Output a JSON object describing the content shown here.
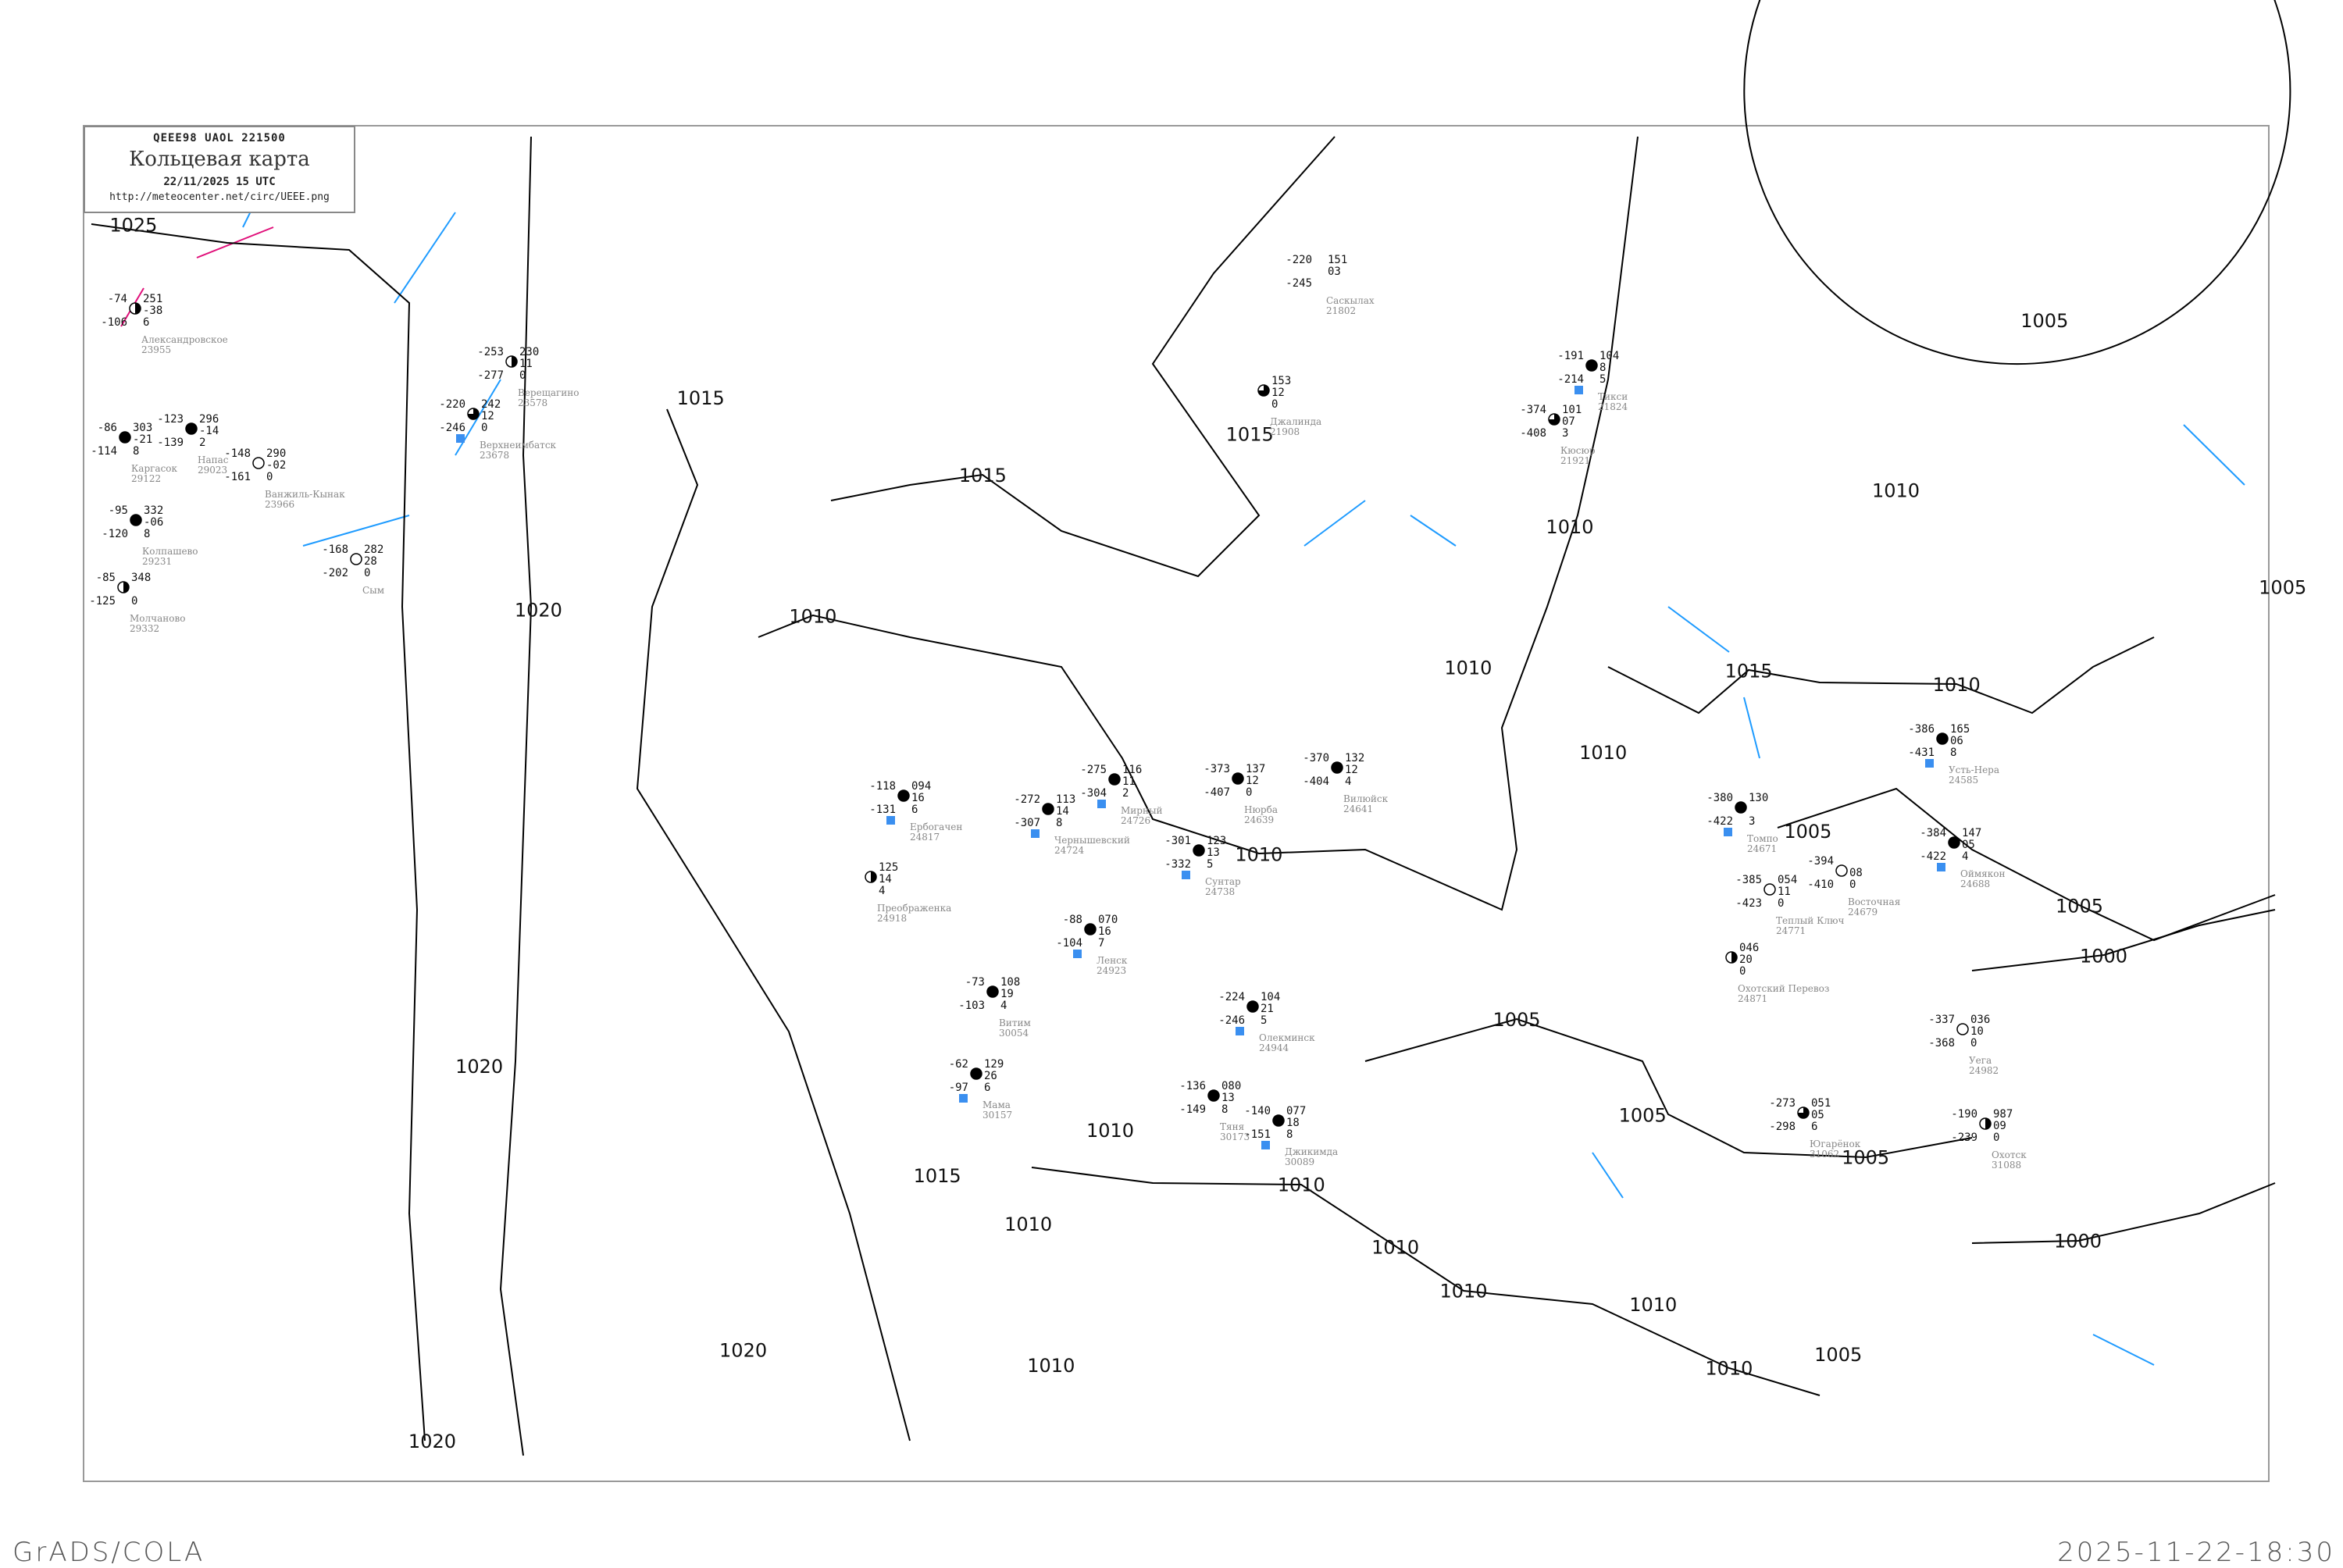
{
  "header": {
    "code": "QEEE98  UAOL  221500",
    "title": "Кольцевая карта",
    "date": "22/11/2025 15 UTC",
    "url": "http://meteocenter.net/circ/UEEE.png"
  },
  "footer": {
    "left": "GrADS/COLA",
    "right": "2025-11-22-18:30"
  },
  "colors": {
    "isobar": "#000000",
    "isotherm": "#1e9bff",
    "isotherm_warm": "#e0107a",
    "coast": "#aaaaaa",
    "precip_marker": "#3a8ff0",
    "station_name": "#888888"
  },
  "isobar_labels": [
    "1025",
    "1020",
    "1020",
    "1020",
    "1020",
    "1015",
    "1015",
    "1015",
    "1015",
    "1015",
    "1010",
    "1010",
    "1010",
    "1010",
    "1010",
    "1010",
    "1010",
    "1010",
    "1010",
    "1010",
    "1010",
    "1010",
    "1010",
    "1010",
    "1010",
    "1005",
    "1005",
    "1005",
    "1005",
    "1005",
    "1005",
    "1005",
    "1005",
    "1000",
    "1000"
  ],
  "stations": [
    {
      "name": "Александровское",
      "id": "23955",
      "t": "-74",
      "td": "-106",
      "p": "251",
      "dp": "-38",
      "trend": "6",
      "cover": "half"
    },
    {
      "name": "Каргасок",
      "id": "29122",
      "t": "-86",
      "td": "-114",
      "p": "303",
      "dp": "-21",
      "trend": "8",
      "cover": "full"
    },
    {
      "name": "Напас",
      "id": "29023",
      "t": "-123",
      "td": "-139",
      "p": "296",
      "dp": "-14",
      "trend": "2",
      "cover": "full"
    },
    {
      "name": "Ванжиль-Кынак",
      "id": "23966",
      "t": "-148",
      "td": "-161",
      "p": "290",
      "dp": "-02",
      "trend": "0",
      "cover": "empty"
    },
    {
      "name": "Колпашево",
      "id": "29231",
      "t": "-95",
      "td": "-120",
      "p": "332",
      "dp": "-06",
      "trend": "8",
      "cover": "full"
    },
    {
      "name": "Молчаново",
      "id": "29332",
      "t": "-85",
      "td": "-125",
      "p": "348",
      "dp": "",
      "trend": "0",
      "cover": "half"
    },
    {
      "name": "Верещагино",
      "id": "23578",
      "t": "-253",
      "td": "-277",
      "p": "230",
      "dp": "11",
      "trend": "0",
      "cover": "half"
    },
    {
      "name": "Верхнеимбатск",
      "id": "23678",
      "t": "-220",
      "td": "-246",
      "p": "242",
      "dp": "12",
      "trend": "0",
      "cover": "threequarter",
      "precip": true
    },
    {
      "name": "Сым",
      "id": "",
      "t": "-168",
      "td": "-202",
      "p": "282",
      "dp": "28",
      "trend": "0",
      "cover": "empty"
    },
    {
      "name": "Саскылах",
      "id": "21802",
      "t": "-220",
      "td": "-245",
      "p": "151",
      "dp": "03",
      "trend": "",
      "cover": "none"
    },
    {
      "name": "Тикси",
      "id": "21824",
      "t": "-191",
      "td": "-214",
      "p": "104",
      "dp": "8",
      "trend": "5",
      "cover": "full",
      "precip": true
    },
    {
      "name": "Кюсюр",
      "id": "21921",
      "t": "-374",
      "td": "-408",
      "p": "101",
      "dp": "07",
      "trend": "3",
      "cover": "threequarter"
    },
    {
      "name": "Джалинда",
      "id": "21908",
      "t": "",
      "td": "",
      "p": "153",
      "dp": "12",
      "trend": "0",
      "cover": "threequarter"
    },
    {
      "name": "Ербогачен",
      "id": "24817",
      "t": "-118",
      "td": "-131",
      "p": "094",
      "dp": "16",
      "trend": "6",
      "cover": "full",
      "precip": true
    },
    {
      "name": "Чернышевский",
      "id": "24724",
      "t": "-272",
      "td": "-307",
      "p": "113",
      "dp": "14",
      "trend": "8",
      "cover": "full",
      "precip": true
    },
    {
      "name": "Мирный",
      "id": "24726",
      "t": "-275",
      "td": "-304",
      "p": "116",
      "dp": "11",
      "trend": "2",
      "cover": "full",
      "precip": true
    },
    {
      "name": "Нюрба",
      "id": "24639",
      "t": "-373",
      "td": "-407",
      "p": "137",
      "dp": "12",
      "trend": "0",
      "cover": "full"
    },
    {
      "name": "Вилюйск",
      "id": "24641",
      "t": "-370",
      "td": "-404",
      "p": "132",
      "dp": "12",
      "trend": "4",
      "cover": "full"
    },
    {
      "name": "Сунтар",
      "id": "24738",
      "t": "-301",
      "td": "-332",
      "p": "123",
      "dp": "13",
      "trend": "5",
      "cover": "full",
      "precip": true
    },
    {
      "name": "Преображенка",
      "id": "24918",
      "t": "",
      "td": "",
      "p": "125",
      "dp": "14",
      "trend": "4",
      "cover": "half"
    },
    {
      "name": "Ленск",
      "id": "24923",
      "t": "-88",
      "td": "-104",
      "p": "070",
      "dp": "16",
      "trend": "7",
      "cover": "full",
      "precip": true
    },
    {
      "name": "Витим",
      "id": "30054",
      "t": "-73",
      "td": "-103",
      "p": "108",
      "dp": "19",
      "trend": "4",
      "cover": "full"
    },
    {
      "name": "Мама",
      "id": "30157",
      "t": "-62",
      "td": "-97",
      "p": "129",
      "dp": "26",
      "trend": "6",
      "cover": "full",
      "precip": true
    },
    {
      "name": "Олекминск",
      "id": "24944",
      "t": "-224",
      "td": "-246",
      "p": "104",
      "dp": "21",
      "trend": "5",
      "cover": "full",
      "precip": true
    },
    {
      "name": "Тяня",
      "id": "30173",
      "t": "-136",
      "td": "-149",
      "p": "080",
      "dp": "13",
      "trend": "8",
      "cover": "full"
    },
    {
      "name": "Джикимда",
      "id": "30089",
      "t": "-140",
      "td": "-151",
      "p": "077",
      "dp": "18",
      "trend": "8",
      "cover": "full",
      "precip": true
    },
    {
      "name": "Усть-Нера",
      "id": "24585",
      "t": "-386",
      "td": "-431",
      "p": "165",
      "dp": "06",
      "trend": "8",
      "cover": "full",
      "precip": true
    },
    {
      "name": "Томпо",
      "id": "24671",
      "t": "-380",
      "td": "-422",
      "p": "130",
      "dp": "",
      "trend": "3",
      "cover": "full",
      "precip": true
    },
    {
      "name": "Оймякон",
      "id": "24688",
      "t": "-384",
      "td": "-422",
      "p": "147",
      "dp": "05",
      "trend": "4",
      "cover": "full",
      "precip": true
    },
    {
      "name": "Восточная",
      "id": "24679",
      "t": "-394",
      "td": "-410",
      "p": "",
      "dp": "08",
      "trend": "0",
      "cover": "empty"
    },
    {
      "name": "Теплый Ключ",
      "id": "24771",
      "t": "-385",
      "td": "-423",
      "p": "054",
      "dp": "11",
      "trend": "0",
      "cover": "empty"
    },
    {
      "name": "Охотский Перевоз",
      "id": "24871",
      "t": "",
      "td": "",
      "p": "046",
      "dp": "20",
      "trend": "0",
      "cover": "half"
    },
    {
      "name": "Уега",
      "id": "24982",
      "t": "-337",
      "td": "-368",
      "p": "036",
      "dp": "10",
      "trend": "0",
      "cover": "empty"
    },
    {
      "name": "Югарёнок",
      "id": "31062",
      "t": "-273",
      "td": "-298",
      "p": "051",
      "dp": "05",
      "trend": "6",
      "cover": "threequarter"
    },
    {
      "name": "Охотск",
      "id": "31088",
      "t": "-190",
      "td": "-239",
      "p": "987",
      "dp": "09",
      "trend": "0",
      "cover": "half"
    }
  ]
}
